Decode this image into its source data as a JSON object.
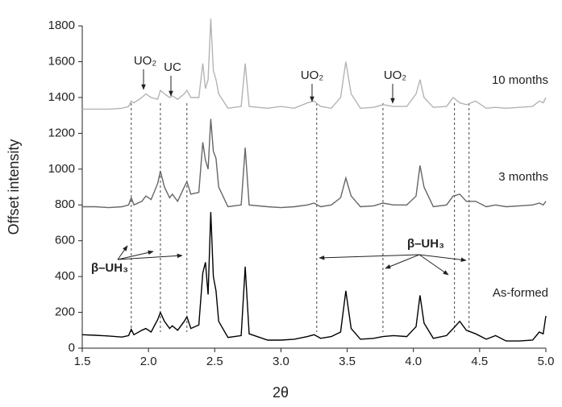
{
  "chart_data": {
    "type": "line",
    "x_label": "2θ",
    "y_label": "Offset intensity",
    "xlim": [
      1.5,
      5.0
    ],
    "xticks": [
      {
        "value": 1.5,
        "label": "1.5"
      },
      {
        "value": 2.0,
        "label": "2.0"
      },
      {
        "value": 2.5,
        "label": "2.5"
      },
      {
        "value": 3.0,
        "label": "3.0"
      },
      {
        "value": 3.5,
        "label": "3.5"
      },
      {
        "value": 4.0,
        "label": "4.0"
      },
      {
        "value": 4.5,
        "label": "4.5"
      },
      {
        "value": 5.0,
        "label": "5.0"
      }
    ],
    "ylim": [
      0,
      1850
    ],
    "yticks": [
      0,
      200,
      400,
      600,
      800,
      1000,
      1200,
      1400,
      1600,
      1800
    ],
    "x": [
      1.5,
      1.6,
      1.7,
      1.8,
      1.85,
      1.87,
      1.89,
      1.95,
      1.98,
      2.02,
      2.07,
      2.09,
      2.12,
      2.16,
      2.18,
      2.22,
      2.27,
      2.29,
      2.32,
      2.38,
      2.41,
      2.43,
      2.45,
      2.47,
      2.49,
      2.51,
      2.53,
      2.6,
      2.7,
      2.73,
      2.76,
      2.9,
      3.0,
      3.1,
      3.2,
      3.25,
      3.3,
      3.38,
      3.45,
      3.49,
      3.53,
      3.6,
      3.7,
      3.77,
      3.85,
      3.95,
      4.02,
      4.05,
      4.08,
      4.15,
      4.25,
      4.3,
      4.35,
      4.4,
      4.47,
      4.55,
      4.62,
      4.7,
      4.8,
      4.9,
      4.95,
      4.98,
      5.0
    ],
    "series": [
      {
        "name": "10 months",
        "color": "#b4b4b4",
        "values": [
          1335,
          1335,
          1335,
          1340,
          1350,
          1380,
          1370,
          1400,
          1420,
          1400,
          1390,
          1440,
          1420,
          1400,
          1410,
          1390,
          1420,
          1440,
          1400,
          1400,
          1590,
          1450,
          1500,
          1840,
          1550,
          1500,
          1420,
          1340,
          1350,
          1590,
          1350,
          1340,
          1350,
          1340,
          1370,
          1380,
          1350,
          1340,
          1400,
          1600,
          1420,
          1340,
          1345,
          1360,
          1350,
          1350,
          1420,
          1500,
          1400,
          1345,
          1350,
          1400,
          1370,
          1360,
          1380,
          1340,
          1345,
          1340,
          1345,
          1350,
          1380,
          1370,
          1400
        ]
      },
      {
        "name": "3 months",
        "color": "#666666",
        "values": [
          790,
          790,
          785,
          790,
          800,
          840,
          800,
          820,
          850,
          830,
          920,
          990,
          900,
          840,
          860,
          820,
          900,
          930,
          860,
          870,
          1150,
          1050,
          1000,
          1280,
          1100,
          1060,
          900,
          790,
          800,
          1120,
          800,
          790,
          785,
          790,
          800,
          810,
          790,
          800,
          840,
          950,
          850,
          790,
          795,
          810,
          800,
          800,
          850,
          1020,
          900,
          790,
          800,
          850,
          860,
          820,
          820,
          790,
          800,
          790,
          795,
          800,
          810,
          800,
          820
        ]
      },
      {
        "name": "As-formed",
        "color": "#000000",
        "values": [
          75,
          72,
          68,
          62,
          70,
          105,
          75,
          100,
          110,
          90,
          160,
          200,
          150,
          110,
          125,
          100,
          150,
          175,
          110,
          130,
          420,
          480,
          300,
          760,
          400,
          320,
          150,
          60,
          70,
          455,
          80,
          45,
          45,
          50,
          65,
          75,
          55,
          65,
          90,
          320,
          110,
          50,
          55,
          65,
          70,
          65,
          120,
          295,
          140,
          55,
          70,
          110,
          150,
          100,
          80,
          50,
          70,
          40,
          40,
          45,
          90,
          80,
          180
        ]
      }
    ],
    "reference_lines": [
      1.87,
      2.09,
      2.29,
      3.27,
      3.77,
      4.31,
      4.42
    ],
    "annotations": [
      "UO₂",
      "UC",
      "UO₂",
      "UO₂",
      "β–UH₃",
      "β–UH₃"
    ]
  }
}
